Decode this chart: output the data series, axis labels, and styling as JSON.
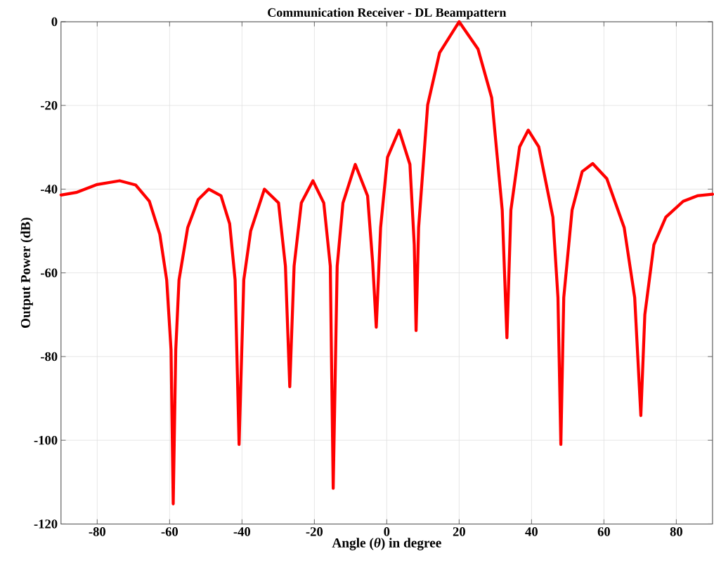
{
  "chart_data": {
    "type": "line",
    "title": "Communication Receiver - DL Beampattern",
    "xlabel": "Angle (*θ*) in degree",
    "ylabel": "Output Power (dB)",
    "xlim": [
      -90,
      90
    ],
    "ylim": [
      -120,
      0
    ],
    "xticks": [
      -80,
      -60,
      -40,
      -20,
      0,
      20,
      40,
      60,
      80
    ],
    "yticks": [
      -120,
      -100,
      -80,
      -60,
      -40,
      -20,
      0
    ],
    "grid": true,
    "series": [
      {
        "color": "#ff0000",
        "x": [
          -90,
          -85.8,
          -80,
          -73.8,
          -69.4,
          -65.6,
          -62.7,
          -60.8,
          -59.6,
          -59.0,
          -58.3,
          -57.4,
          -55,
          -52.1,
          -49.2,
          -45.8,
          -43.4,
          -41.9,
          -40.8,
          -39.5,
          -37.6,
          -33.8,
          -29.9,
          -28.0,
          -26.8,
          -25.6,
          -23.6,
          -20.4,
          -17.4,
          -15.6,
          -14.8,
          -13.7,
          -12.1,
          -8.7,
          -5.3,
          -3.9,
          -2.9,
          -1.7,
          0.2,
          3.4,
          6.4,
          7.6,
          8.1,
          8.8,
          11.3,
          14.6,
          20,
          25.2,
          29,
          31.9,
          33.2,
          34.3,
          36.7,
          39.1,
          42,
          45.9,
          47.3,
          48.1,
          48.9,
          51.2,
          54,
          56.9,
          60.8,
          65.6,
          68.5,
          70.2,
          71.3,
          73.8,
          77.1,
          81.9,
          85.8,
          90
        ],
        "values": [
          -41.4,
          -40.8,
          -38.9,
          -38.0,
          -39,
          -42.9,
          -50.8,
          -61.7,
          -78.4,
          -115.2,
          -78.4,
          -61.7,
          -49.2,
          -42.5,
          -40.0,
          -41.6,
          -48.3,
          -61.7,
          -101,
          -61.7,
          -50,
          -40,
          -43.3,
          -58.4,
          -87.2,
          -58.4,
          -43.3,
          -38,
          -43.3,
          -58.4,
          -111.5,
          -58.4,
          -43.3,
          -34.1,
          -41.6,
          -57.5,
          -73,
          -49.2,
          -32.4,
          -25.9,
          -34.1,
          -53.3,
          -73.8,
          -49.2,
          -19.9,
          -7.4,
          0,
          -6.5,
          -18.2,
          -45,
          -75.5,
          -45,
          -29.9,
          -25.9,
          -29.9,
          -46.7,
          -65.9,
          -101,
          -65.9,
          -45,
          -35.8,
          -33.9,
          -37.5,
          -49.2,
          -65.9,
          -94.1,
          -70,
          -53.3,
          -46.7,
          -42.9,
          -41.6,
          -41.2
        ]
      }
    ]
  }
}
